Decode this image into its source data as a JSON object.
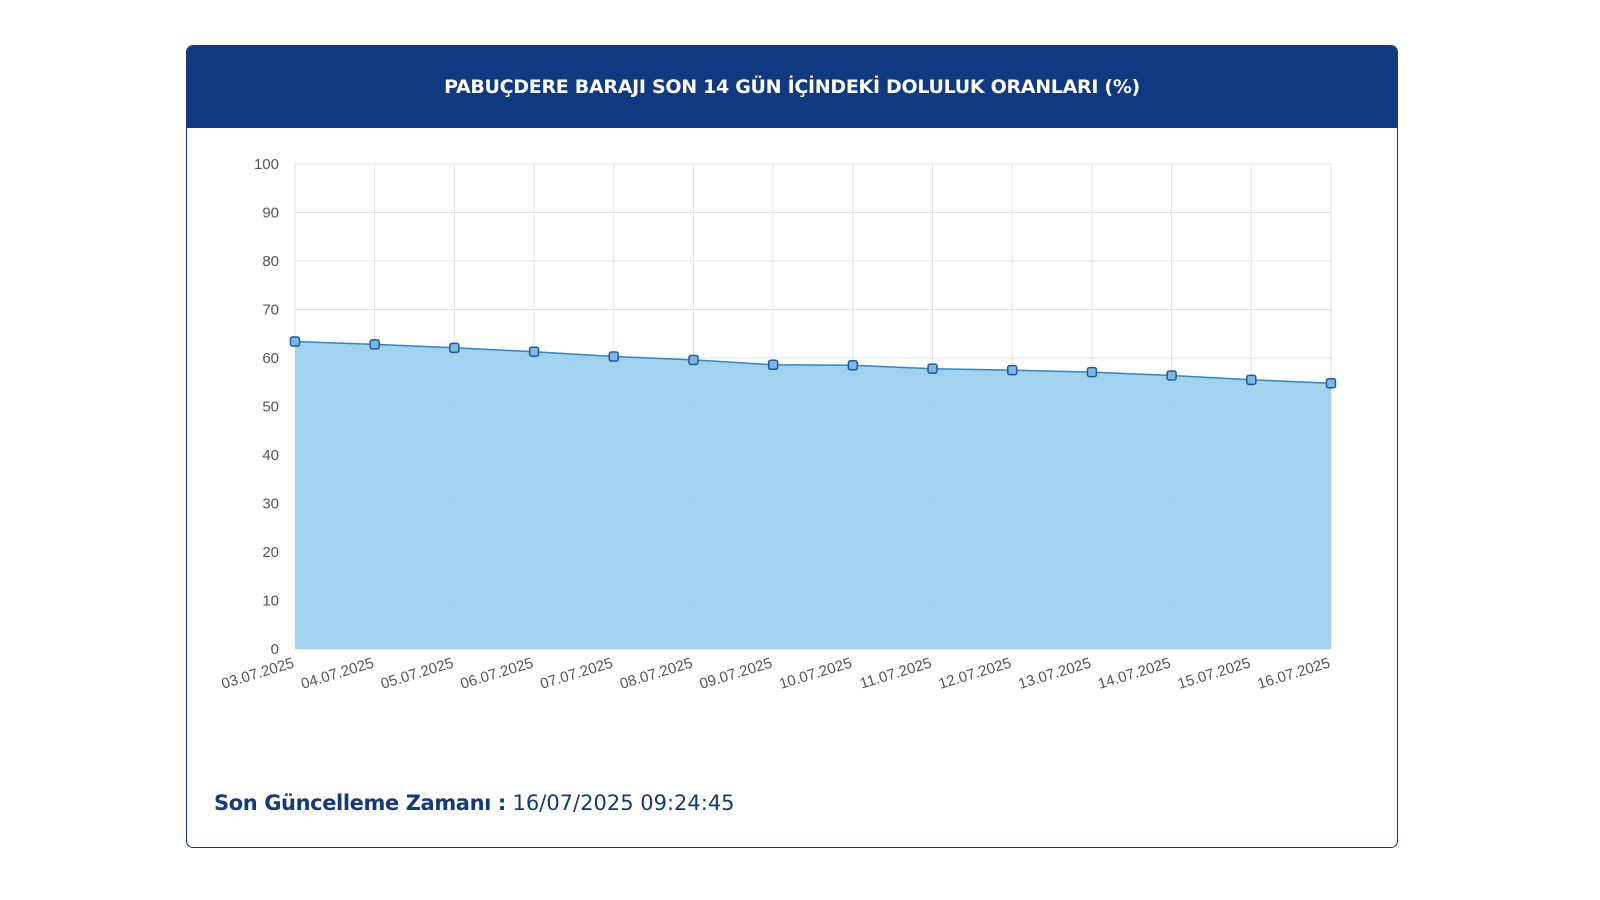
{
  "header": {
    "title": "PABUÇDERE BARAJI SON 14 GÜN İÇİNDEKİ DOLULUK ORANLARI (%)"
  },
  "footer": {
    "label": "Son Güncelleme Zamanı :",
    "value": "16/07/2025 09:24:45"
  },
  "colors": {
    "header_bg": "#0f3a82",
    "area_fill": "#9dd0ec",
    "line": "#2f86c6",
    "marker_fill": "#7fb6e2",
    "marker_stroke": "#1d5a9c",
    "grid": "#e3e3e3"
  },
  "chart_data": {
    "type": "area",
    "title": "PABUÇDERE BARAJI SON 14 GÜN İÇİNDEKİ DOLULUK ORANLARI (%)",
    "xlabel": "",
    "ylabel": "",
    "ylim": [
      0,
      100
    ],
    "yticks": [
      0,
      10,
      20,
      30,
      40,
      50,
      60,
      70,
      80,
      90,
      100
    ],
    "grid": true,
    "legend": "none",
    "categories": [
      "03.07.2025",
      "04.07.2025",
      "05.07.2025",
      "06.07.2025",
      "07.07.2025",
      "08.07.2025",
      "09.07.2025",
      "10.07.2025",
      "11.07.2025",
      "12.07.2025",
      "13.07.2025",
      "14.07.2025",
      "15.07.2025",
      "16.07.2025"
    ],
    "series": [
      {
        "values": [
          63.4,
          62.8,
          62.1,
          61.3,
          60.3,
          59.6,
          58.6,
          58.5,
          57.8,
          57.5,
          57.1,
          56.4,
          55.5,
          54.8
        ]
      }
    ]
  }
}
